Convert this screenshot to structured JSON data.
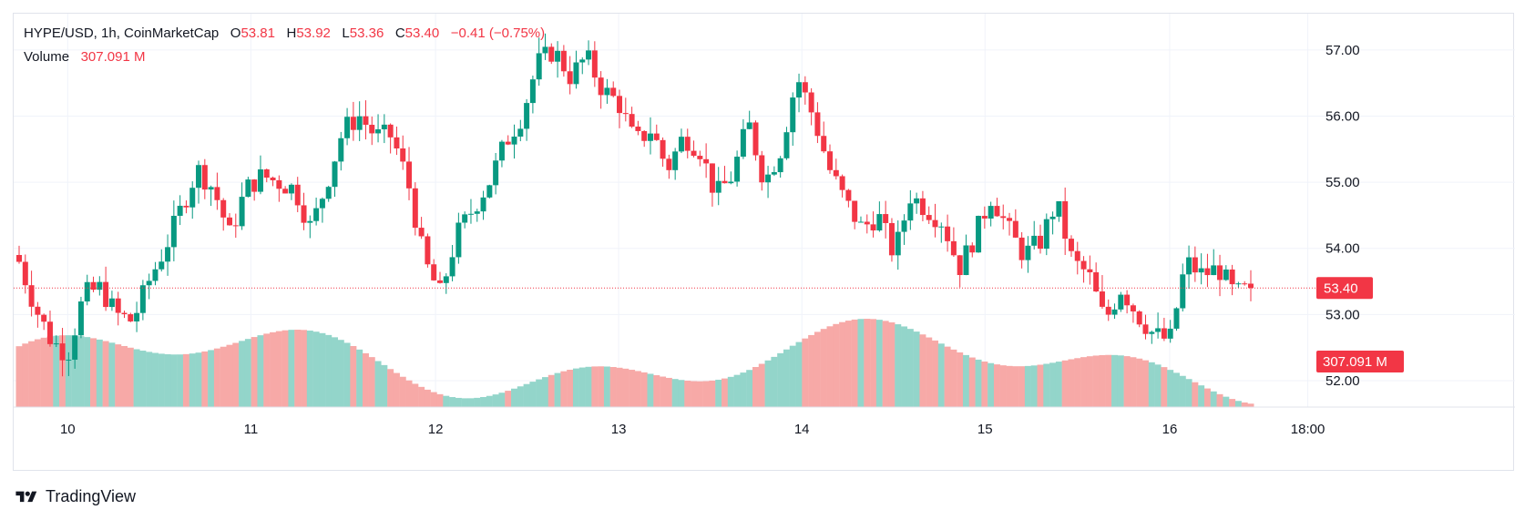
{
  "header": {
    "symbol": "HYPE/USD, 1h, CoinMarketCap",
    "open_label": "O",
    "open_value": "53.81",
    "high_label": "H",
    "high_value": "53.92",
    "low_label": "L",
    "low_value": "53.36",
    "close_label": "C",
    "close_value": "53.40",
    "change": "−0.41 (−0.75%)",
    "volume_label": "Volume",
    "volume_value": "307.091 M"
  },
  "price_badge": "53.40",
  "volume_badge": "307.091 M",
  "brand": "TradingView",
  "colors": {
    "up": "#089981",
    "down": "#f23645",
    "up_volume": "#93d5ca",
    "down_volume": "#f7a9a7",
    "grid": "#f0f3fa"
  },
  "chart_data": {
    "type": "candlestick",
    "interval": "1h",
    "y_axis": {
      "range": [
        51.6,
        57.55
      ],
      "ticks": [
        "52.00",
        "53.00",
        "54.00",
        "55.00",
        "56.00",
        "57.00"
      ],
      "position": "right"
    },
    "x_axis": {
      "ticks": [
        "10",
        "11",
        "12",
        "13",
        "14",
        "15",
        "16",
        "18:00"
      ]
    },
    "grid": true,
    "last_price": 53.4,
    "ohlc_close_path": [
      53.8,
      53.1,
      52.6,
      52.4,
      53.3,
      53.4,
      53.0,
      52.9,
      53.5,
      54.0,
      54.6,
      55.2,
      54.9,
      54.2,
      54.9,
      55.1,
      55.0,
      54.9,
      54.3,
      55.0,
      55.8,
      56.0,
      55.7,
      55.7,
      55.0,
      53.8,
      53.3,
      54.2,
      54.6,
      55.0,
      55.6,
      56.0,
      56.8,
      57.0,
      56.6,
      56.9,
      56.4,
      56.2,
      55.6,
      55.8,
      55.2,
      55.7,
      55.5,
      54.8,
      55.1,
      55.9,
      55.0,
      55.5,
      56.6,
      56.0,
      55.2,
      54.7,
      54.3,
      54.5,
      53.9,
      54.8,
      54.6,
      54.4,
      53.7,
      54.2,
      54.8,
      54.3,
      53.9,
      54.1,
      54.7,
      53.8,
      53.6,
      52.9,
      53.4,
      53.0,
      52.7,
      52.6,
      53.8,
      53.6,
      53.7,
      53.3,
      53.4
    ]
  }
}
